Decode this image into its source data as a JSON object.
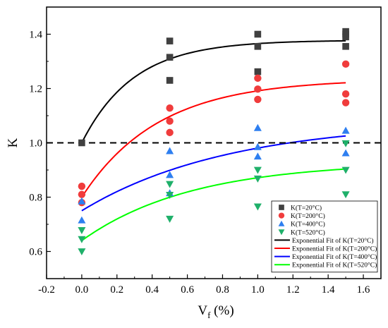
{
  "chart_data": {
    "type": "scatter",
    "xlabel_main": "V",
    "xlabel_sub": "f",
    "xlabel_unit": " (%)",
    "ylabel": "K",
    "xlim": [
      -0.2,
      1.7
    ],
    "ylim": [
      0.5,
      1.5
    ],
    "xticks": [
      -0.2,
      0.0,
      0.2,
      0.4,
      0.6,
      0.8,
      1.0,
      1.2,
      1.4,
      1.6
    ],
    "xtick_labels": [
      "-0.2",
      "0.0",
      "0.2",
      "0.4",
      "0.6",
      "0.8",
      "1.0",
      "1.2",
      "1.4",
      "1.6"
    ],
    "yticks": [
      0.6,
      0.8,
      1.0,
      1.2,
      1.4
    ],
    "ytick_labels": [
      "0.6",
      "0.8",
      "1.0",
      "1.2",
      "1.4"
    ],
    "reference_line": {
      "y": 1.0,
      "style": "dashed"
    },
    "legend_position": "lower-right",
    "series": [
      {
        "name": "K(T=20°C)",
        "marker": "square",
        "color": "#404040",
        "points": [
          [
            0.0,
            1.0
          ],
          [
            0.5,
            1.375
          ],
          [
            0.5,
            1.315
          ],
          [
            0.5,
            1.23
          ],
          [
            1.0,
            1.4
          ],
          [
            1.0,
            1.355
          ],
          [
            1.0,
            1.262
          ],
          [
            1.5,
            1.41
          ],
          [
            1.5,
            1.4
          ],
          [
            1.5,
            1.39
          ],
          [
            1.5,
            1.355
          ]
        ]
      },
      {
        "name": "K(T=200°C)",
        "marker": "circle",
        "color": "#f03c3c",
        "points": [
          [
            0.0,
            0.84
          ],
          [
            0.0,
            0.81
          ],
          [
            0.0,
            0.78
          ],
          [
            0.5,
            1.128
          ],
          [
            0.5,
            1.08
          ],
          [
            0.5,
            1.038
          ],
          [
            1.0,
            1.238
          ],
          [
            1.0,
            1.198
          ],
          [
            1.0,
            1.16
          ],
          [
            1.5,
            1.29
          ],
          [
            1.5,
            1.18
          ],
          [
            1.5,
            1.148
          ]
        ]
      },
      {
        "name": "K(T=400°C)",
        "marker": "triangle-up",
        "color": "#2e7ff0",
        "points": [
          [
            0.0,
            0.785
          ],
          [
            0.0,
            0.715
          ],
          [
            0.5,
            0.97
          ],
          [
            0.5,
            0.882
          ],
          [
            0.5,
            0.815
          ],
          [
            1.0,
            1.055
          ],
          [
            1.0,
            0.985
          ],
          [
            1.0,
            0.95
          ],
          [
            1.5,
            1.045
          ],
          [
            1.5,
            0.962
          ]
        ]
      },
      {
        "name": "K(T=520°C)",
        "marker": "triangle-down",
        "color": "#1fb06a",
        "points": [
          [
            0.0,
            0.678
          ],
          [
            0.0,
            0.645
          ],
          [
            0.0,
            0.6
          ],
          [
            0.5,
            0.848
          ],
          [
            0.5,
            0.808
          ],
          [
            0.5,
            0.72
          ],
          [
            1.0,
            0.9
          ],
          [
            1.0,
            0.868
          ],
          [
            1.0,
            0.765
          ],
          [
            1.5,
            0.998
          ],
          [
            1.5,
            0.9
          ],
          [
            1.5,
            0.81
          ]
        ]
      }
    ],
    "fits": [
      {
        "name": "Exponential Fit of K(T=20°C)",
        "color": "#000000",
        "y0": 1.0,
        "yinf": 1.378,
        "rate": 3.4
      },
      {
        "name": "Exponential Fit of K(T=200°C)",
        "color": "#ff0000",
        "y0": 0.8,
        "yinf": 1.235,
        "rate": 2.3
      },
      {
        "name": "Exponential Fit of K(T=400°C)",
        "color": "#0000ff",
        "y0": 0.75,
        "yinf": 1.08,
        "rate": 1.2
      },
      {
        "name": "Exponential Fit of K(T=520°C)",
        "color": "#00ff00",
        "y0": 0.64,
        "yinf": 0.93,
        "rate": 1.6
      }
    ]
  }
}
